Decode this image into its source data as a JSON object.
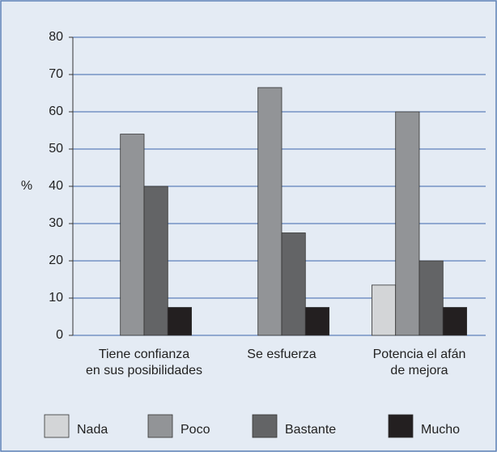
{
  "chart_data": {
    "type": "bar",
    "y_label": "%",
    "categories": [
      "Tiene confianza\nen sus posibilidades",
      "Se esfuerza",
      "Potencia el afán\nde mejora"
    ],
    "series": [
      {
        "name": "Nada",
        "color": "#d3d5d7",
        "values": [
          0,
          0,
          13.5
        ]
      },
      {
        "name": "Poco",
        "color": "#929497",
        "values": [
          54,
          66.5,
          60
        ]
      },
      {
        "name": "Bastante",
        "color": "#636466",
        "values": [
          40,
          27.5,
          20
        ]
      },
      {
        "name": "Mucho",
        "color": "#231f20",
        "values": [
          7.5,
          7.5,
          7.5
        ]
      }
    ],
    "ylim": [
      0,
      80
    ],
    "yticks": [
      0,
      10,
      20,
      30,
      40,
      50,
      60,
      70,
      80
    ],
    "grid": true,
    "legend": "bottom"
  }
}
